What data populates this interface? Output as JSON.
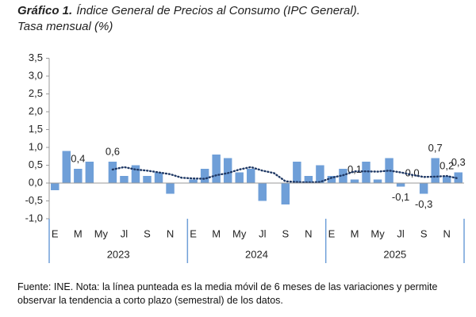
{
  "chart_data": {
    "type": "bar",
    "title_label": "Gráfico 1.",
    "title": "Índice General de Precios al Consumo (IPC General).",
    "subtitle": "Tasa mensual (%)",
    "categories": [
      "E",
      null,
      "M",
      null,
      "My",
      null,
      "Jl",
      null,
      "S",
      null,
      "N",
      null,
      "E",
      null,
      "M",
      null,
      "My",
      null,
      "Jl",
      null,
      "S",
      null,
      "N",
      null,
      "E",
      null,
      "M",
      null,
      "My",
      null,
      "Jl",
      null,
      "S",
      null,
      "N",
      null
    ],
    "groups": [
      "2023",
      "2024",
      "2025"
    ],
    "series": [
      {
        "color": "#6f9fd8",
        "values": [
          -0.2,
          0.9,
          0.4,
          0.6,
          0.0,
          0.6,
          0.2,
          0.5,
          0.2,
          0.3,
          -0.3,
          0.0,
          0.1,
          0.4,
          0.8,
          0.7,
          0.3,
          0.4,
          -0.5,
          0.0,
          -0.6,
          0.6,
          0.2,
          0.5,
          0.2,
          0.4,
          0.1,
          0.6,
          0.1,
          0.7,
          -0.1,
          0.0,
          -0.3,
          0.7,
          0.2,
          0.3
        ],
        "value_labels": [
          null,
          null,
          "0,4",
          null,
          null,
          "0,6",
          null,
          null,
          null,
          null,
          null,
          null,
          null,
          null,
          null,
          null,
          null,
          null,
          null,
          null,
          null,
          null,
          null,
          null,
          null,
          null,
          "0,1",
          null,
          null,
          null,
          "-0,1",
          "0,0",
          "-0,3",
          "0,7",
          "0,2",
          "0,3"
        ]
      },
      {
        "type": "line",
        "color": "#1f3864",
        "dotted": true,
        "values": [
          null,
          null,
          null,
          null,
          null,
          0.38,
          0.45,
          0.38,
          0.35,
          0.3,
          0.25,
          0.15,
          0.13,
          0.12,
          0.22,
          0.28,
          0.38,
          0.45,
          0.35,
          0.28,
          0.05,
          0.03,
          0.02,
          0.03,
          0.15,
          0.22,
          0.33,
          0.33,
          0.32,
          0.35,
          0.3,
          0.23,
          0.17,
          0.18,
          0.2,
          0.13
        ]
      }
    ],
    "ylim": [
      -1.0,
      3.5
    ],
    "yticks": [
      {
        "value": -1.0,
        "label": "-1,0"
      },
      {
        "value": -0.5,
        "label": "-0,5"
      },
      {
        "value": 0.0,
        "label": "0,0"
      },
      {
        "value": 0.5,
        "label": "0,5"
      },
      {
        "value": 1.0,
        "label": "1,0"
      },
      {
        "value": 1.5,
        "label": "1,5"
      },
      {
        "value": 2.0,
        "label": "2,0"
      },
      {
        "value": 2.5,
        "label": "2,5"
      },
      {
        "value": 3.0,
        "label": "3,0"
      },
      {
        "value": 3.5,
        "label": "3,5"
      }
    ],
    "grid": false,
    "note": "Fuente: INE. Nota: la línea punteada es la media móvil de 6 meses de las variaciones y permite observar la tendencia a corto plazo (semestral) de los datos."
  }
}
